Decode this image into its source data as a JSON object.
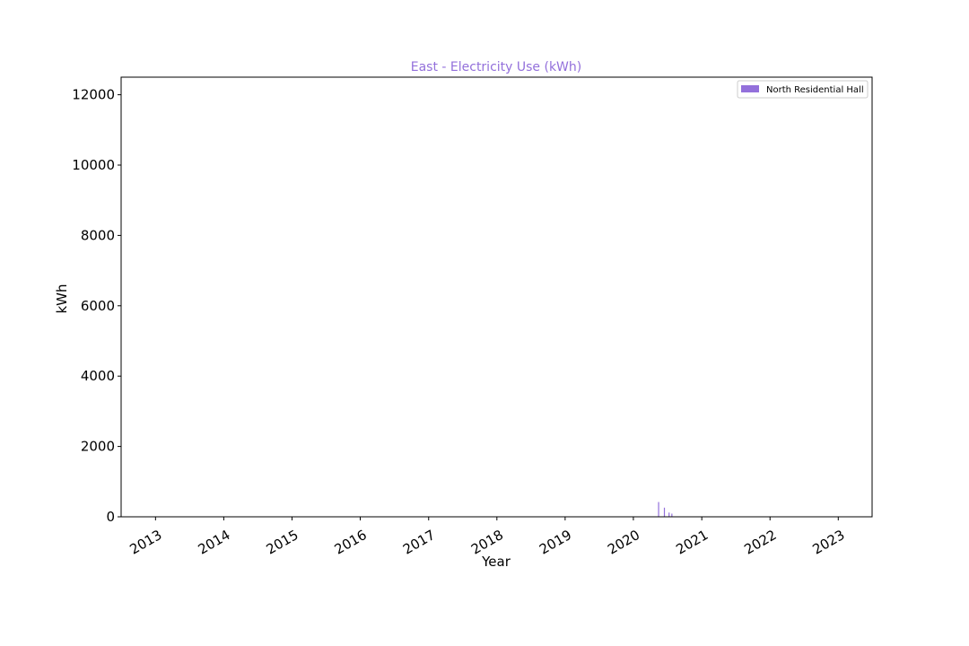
{
  "chart_data": {
    "type": "bar",
    "title": "East - Electricity Use (kWh)",
    "xlabel": "Year",
    "ylabel": "kWh",
    "x_ticks": [
      "2013",
      "2014",
      "2015",
      "2016",
      "2017",
      "2018",
      "2019",
      "2020",
      "2021",
      "2022",
      "2023"
    ],
    "y_ticks": [
      "0",
      "2000",
      "4000",
      "6000",
      "8000",
      "10000",
      "12000"
    ],
    "xlim": [
      "2012-07-01",
      "2023-07-01"
    ],
    "ylim": [
      0,
      12500
    ],
    "grid": false,
    "legend_position": "top-right",
    "series": [
      {
        "name": "North Residential Hall",
        "color": "#9370db",
        "points": [
          {
            "x": "2020-05-15",
            "y": 420
          },
          {
            "x": "2020-06-15",
            "y": 260
          },
          {
            "x": "2020-07-10",
            "y": 120
          },
          {
            "x": "2020-07-25",
            "y": 90
          }
        ]
      }
    ]
  }
}
